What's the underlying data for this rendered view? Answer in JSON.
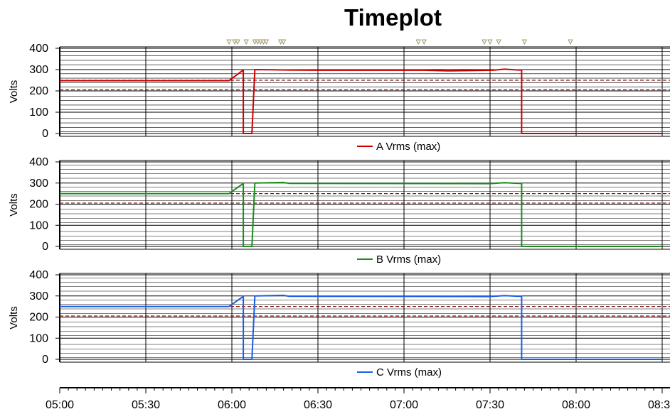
{
  "title": "Timeplot",
  "colors": {
    "grid": "#000000",
    "limit": "#8b1a1a",
    "event_marker": "#808080"
  },
  "chart_data": [
    {
      "type": "line",
      "ylabel": "Volts",
      "ylim": [
        0,
        400
      ],
      "yticks": [
        "0",
        "100",
        "200",
        "300",
        "400"
      ],
      "xlim": [
        "05:00",
        "08:30"
      ],
      "grid": true,
      "legend": "bottom-center",
      "limits": [
        250,
        205
      ],
      "series": [
        {
          "name": "A Vrms (max)",
          "color": "#cc0000",
          "points": [
            [
              "05:00",
              248
            ],
            [
              "05:15",
              248
            ],
            [
              "05:59",
              248
            ],
            [
              "06:04",
              298
            ],
            [
              "06:04",
              0
            ],
            [
              "06:07",
              0
            ],
            [
              "06:08",
              300
            ],
            [
              "06:08",
              300
            ],
            [
              "06:20",
              298
            ],
            [
              "06:30",
              297
            ],
            [
              "07:07",
              297
            ],
            [
              "07:15",
              294
            ],
            [
              "07:31",
              297
            ],
            [
              "07:35",
              302
            ],
            [
              "07:40",
              298
            ],
            [
              "07:41",
              298
            ],
            [
              "07:41",
              0
            ],
            [
              "08:30",
              0
            ]
          ]
        }
      ]
    },
    {
      "type": "line",
      "ylabel": "Volts",
      "ylim": [
        0,
        400
      ],
      "yticks": [
        "0",
        "100",
        "200",
        "300",
        "400"
      ],
      "xlim": [
        "05:00",
        "08:30"
      ],
      "grid": true,
      "legend": "bottom-center",
      "limits": [
        250,
        205
      ],
      "series": [
        {
          "name": "B Vrms (max)",
          "color": "#1a8c1a",
          "points": [
            [
              "05:00",
              250
            ],
            [
              "05:59",
              250
            ],
            [
              "06:04",
              298
            ],
            [
              "06:04",
              0
            ],
            [
              "06:07",
              0
            ],
            [
              "06:08",
              300
            ],
            [
              "06:18",
              303
            ],
            [
              "06:20",
              298
            ],
            [
              "07:30",
              297
            ],
            [
              "07:35",
              302
            ],
            [
              "07:40",
              298
            ],
            [
              "07:41",
              298
            ],
            [
              "07:41",
              120
            ],
            [
              "07:41",
              0
            ],
            [
              "08:30",
              0
            ]
          ]
        }
      ]
    },
    {
      "type": "line",
      "ylabel": "Volts",
      "ylim": [
        0,
        400
      ],
      "yticks": [
        "0",
        "100",
        "200",
        "300",
        "400"
      ],
      "xlim": [
        "05:00",
        "08:30"
      ],
      "grid": true,
      "legend": "bottom-center",
      "limits": [
        250,
        205
      ],
      "series": [
        {
          "name": "C Vrms (max)",
          "color": "#1a5ee6",
          "points": [
            [
              "05:00",
              250
            ],
            [
              "05:59",
              250
            ],
            [
              "06:04",
              298
            ],
            [
              "06:04",
              0
            ],
            [
              "06:07",
              0
            ],
            [
              "06:08",
              300
            ],
            [
              "06:18",
              303
            ],
            [
              "06:20",
              298
            ],
            [
              "07:30",
              297
            ],
            [
              "07:35",
              302
            ],
            [
              "07:40",
              298
            ],
            [
              "07:41",
              298
            ],
            [
              "07:41",
              0
            ],
            [
              "08:30",
              0
            ]
          ]
        }
      ]
    }
  ],
  "x_axis": {
    "tick_labels": [
      "05:00",
      "05:30",
      "06:00",
      "06:30",
      "07:00",
      "07:30",
      "08:00",
      "08:30"
    ]
  },
  "event_markers": [
    "05:59",
    "06:01",
    "06:02",
    "06:05",
    "06:08",
    "06:09",
    "06:10",
    "06:11",
    "06:12",
    "06:17",
    "06:18",
    "07:05",
    "07:07",
    "07:28",
    "07:30",
    "07:33",
    "07:42",
    "07:58"
  ]
}
